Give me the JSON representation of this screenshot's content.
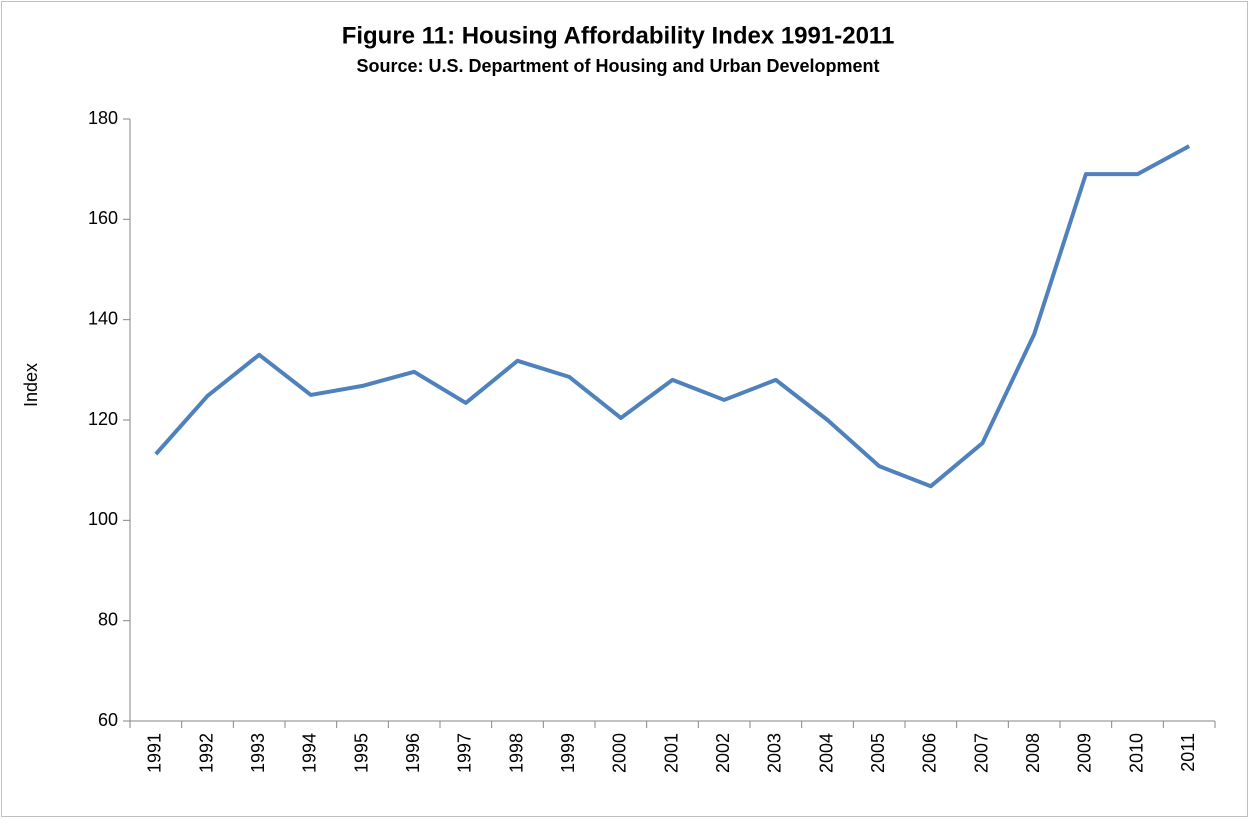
{
  "chart_data": {
    "type": "line",
    "title": "Figure 11: Housing Affordability Index 1991-2011",
    "subtitle": "Source: U.S. Department of Housing and Urban Development",
    "y_label": "Index",
    "categories": [
      "1991",
      "1992",
      "1993",
      "1994",
      "1995",
      "1996",
      "1997",
      "1998",
      "1999",
      "2000",
      "2001",
      "2002",
      "2003",
      "2004",
      "2005",
      "2006",
      "2007",
      "2008",
      "2009",
      "2010",
      "2011"
    ],
    "values": [
      113.2,
      124.8,
      133,
      125,
      126.8,
      129.6,
      123.4,
      131.8,
      128.6,
      120.4,
      128,
      124,
      128,
      120,
      110.8,
      106.8,
      115.4,
      137.1,
      169,
      169,
      174.6
    ],
    "color": "#4f81bd",
    "ylim": [
      60,
      180
    ],
    "yticks": [
      60,
      80,
      100,
      120,
      140,
      160,
      180
    ]
  }
}
